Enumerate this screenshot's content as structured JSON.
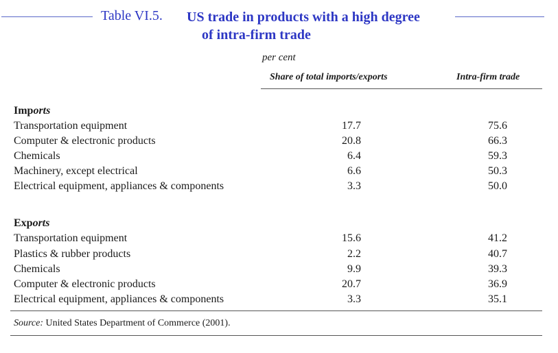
{
  "title": {
    "label": "Table VI.5.",
    "line1": "US trade in products with a high degree",
    "line2": "of intra-firm trade"
  },
  "unit": "per cent",
  "columns": [
    "Share of total imports/exports",
    "Intra-firm trade"
  ],
  "sections": [
    {
      "title_prefix": "Imp",
      "title_suffix": "orts",
      "rows": [
        {
          "label": "Transportation equipment",
          "share": "17.7",
          "intra": "75.6"
        },
        {
          "label": "Computer & electronic products",
          "share": "20.8",
          "intra": "66.3"
        },
        {
          "label": "Chemicals",
          "share": "6.4",
          "intra": "59.3"
        },
        {
          "label": "Machinery, except electrical",
          "share": "6.6",
          "intra": "50.3"
        },
        {
          "label": "Electrical equipment, appliances & components",
          "share": "3.3",
          "intra": "50.0"
        }
      ]
    },
    {
      "title_prefix": "Exp",
      "title_suffix": "orts",
      "rows": [
        {
          "label": "Transportation equipment",
          "share": "15.6",
          "intra": "41.2"
        },
        {
          "label": "Plastics & rubber products",
          "share": "2.2",
          "intra": "40.7"
        },
        {
          "label": "Chemicals",
          "share": "9.9",
          "intra": "39.3"
        },
        {
          "label": "Computer & electronic products",
          "share": "20.7",
          "intra": "36.9"
        },
        {
          "label": "Electrical equipment, appliances & components",
          "share": "3.3",
          "intra": "35.1"
        }
      ]
    }
  ],
  "source": {
    "label": "Source:",
    "text": "United States Department of Commerce (2001)."
  }
}
